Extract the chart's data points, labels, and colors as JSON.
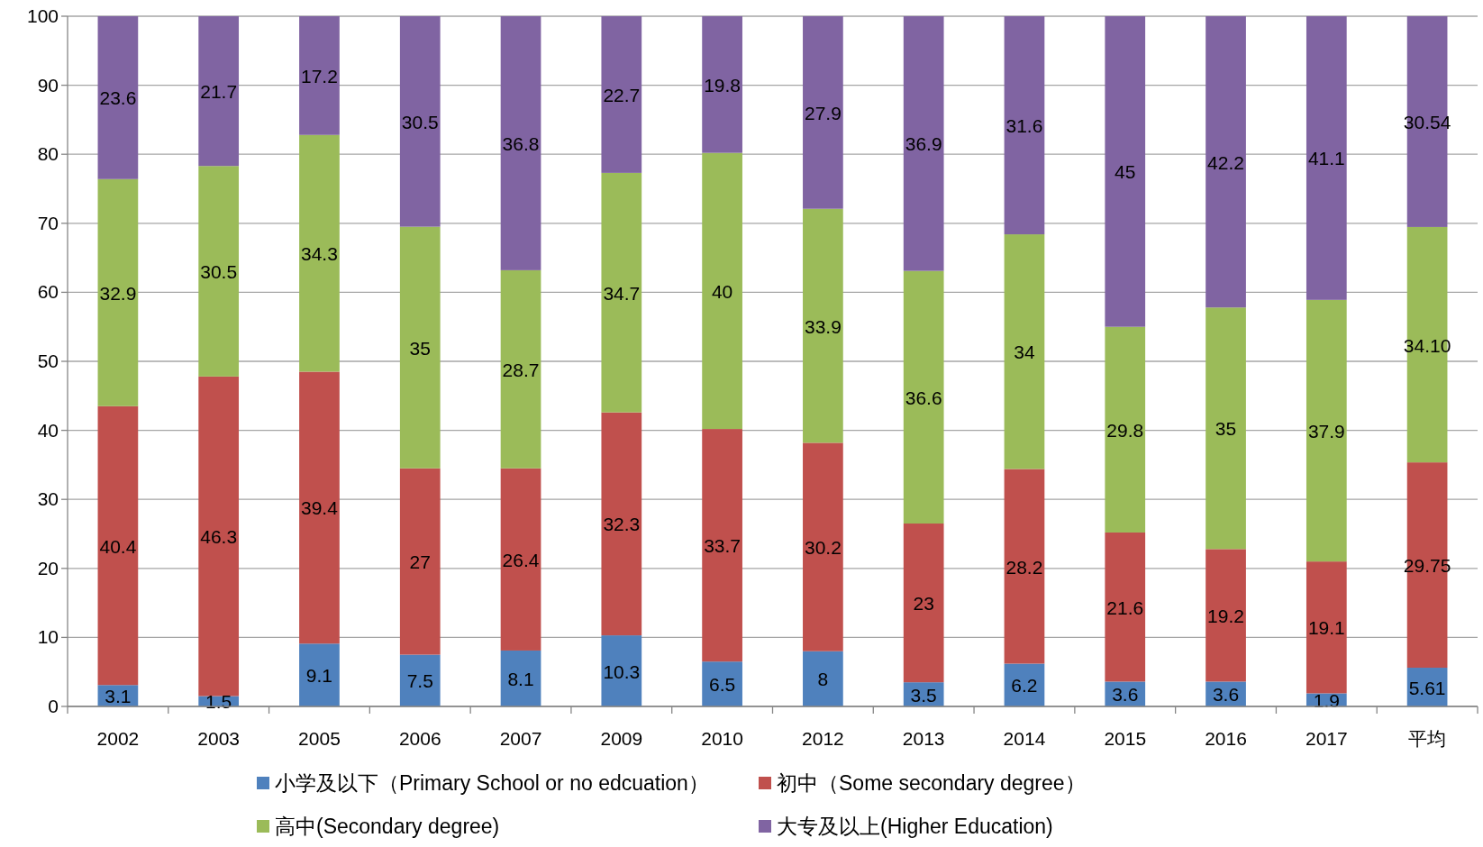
{
  "chart_data": {
    "type": "bar",
    "stacked": true,
    "categories": [
      "2002",
      "2003",
      "2005",
      "2006",
      "2007",
      "2009",
      "2010",
      "2012",
      "2013",
      "2014",
      "2015",
      "2016",
      "2017",
      "平均"
    ],
    "series": [
      {
        "name": "小学及以下（Primary School or no edcuation）",
        "color": "#4f81bd",
        "values": [
          3.1,
          1.5,
          9.1,
          7.5,
          8.1,
          10.3,
          6.5,
          8,
          3.5,
          6.2,
          3.6,
          3.6,
          1.9,
          5.61
        ],
        "value_labels": [
          "3.1",
          "1.5",
          "9.1",
          "7.5",
          "8.1",
          "10.3",
          "6.5",
          "8",
          "3.5",
          "6.2",
          "3.6",
          "3.6",
          "1.9",
          "5.61"
        ]
      },
      {
        "name": "初中（Some secondary degree）",
        "color": "#c0504d",
        "values": [
          40.4,
          46.3,
          39.4,
          27,
          26.4,
          32.3,
          33.7,
          30.2,
          23,
          28.2,
          21.6,
          19.2,
          19.1,
          29.75
        ],
        "value_labels": [
          "40.4",
          "46.3",
          "39.4",
          "27",
          "26.4",
          "32.3",
          "33.7",
          "30.2",
          "23",
          "28.2",
          "21.6",
          "19.2",
          "19.1",
          "29.75"
        ]
      },
      {
        "name": "高中(Secondary degree)",
        "color": "#9bbb59",
        "values": [
          32.9,
          30.5,
          34.3,
          35,
          28.7,
          34.7,
          40,
          33.9,
          36.6,
          34,
          29.8,
          35,
          37.9,
          34.1
        ],
        "value_labels": [
          "32.9",
          "30.5",
          "34.3",
          "35",
          "28.7",
          "34.7",
          "40",
          "33.9",
          "36.6",
          "34",
          "29.8",
          "35",
          "37.9",
          "34.10"
        ]
      },
      {
        "name": "大专及以上(Higher Education)",
        "color": "#8064a2",
        "values": [
          23.6,
          21.7,
          17.2,
          30.5,
          36.8,
          22.7,
          19.8,
          27.9,
          36.9,
          31.6,
          45,
          42.2,
          41.1,
          30.54
        ],
        "value_labels": [
          "23.6",
          "21.7",
          "17.2",
          "30.5",
          "36.8",
          "22.7",
          "19.8",
          "27.9",
          "36.9",
          "31.6",
          "45",
          "42.2",
          "41.1",
          "30.54"
        ]
      }
    ],
    "ylim": [
      0,
      100
    ],
    "yticks": [
      0,
      10,
      20,
      30,
      40,
      50,
      60,
      70,
      80,
      90,
      100
    ],
    "grid": "y",
    "legend": "bottom"
  }
}
